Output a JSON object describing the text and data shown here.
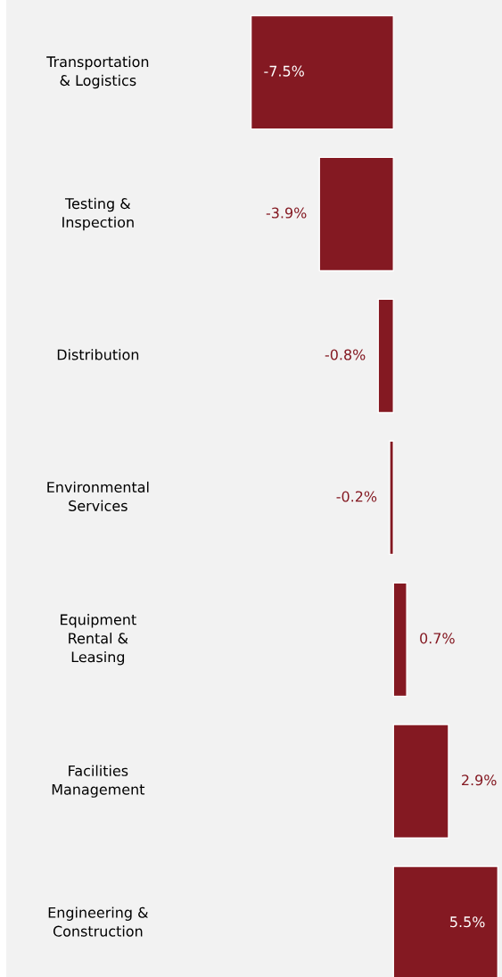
{
  "chart_data": {
    "type": "bar",
    "orientation": "horizontal",
    "data_labels": true,
    "color": "#841922",
    "categories": [
      "Transportation\n& Logistics",
      "Testing &\nInspection",
      "Distribution",
      "Environmental\nServices",
      "Equipment\nRental &\nLeasing",
      "Facilities\nManagement",
      "Engineering &\nConstruction"
    ],
    "values": [
      -7.5,
      -3.9,
      -0.8,
      -0.2,
      0.7,
      2.9,
      5.5
    ],
    "value_labels": [
      "-7.5%",
      "-3.9%",
      "-0.8%",
      "-0.2%",
      "0.7%",
      "2.9%",
      "5.5%"
    ]
  }
}
